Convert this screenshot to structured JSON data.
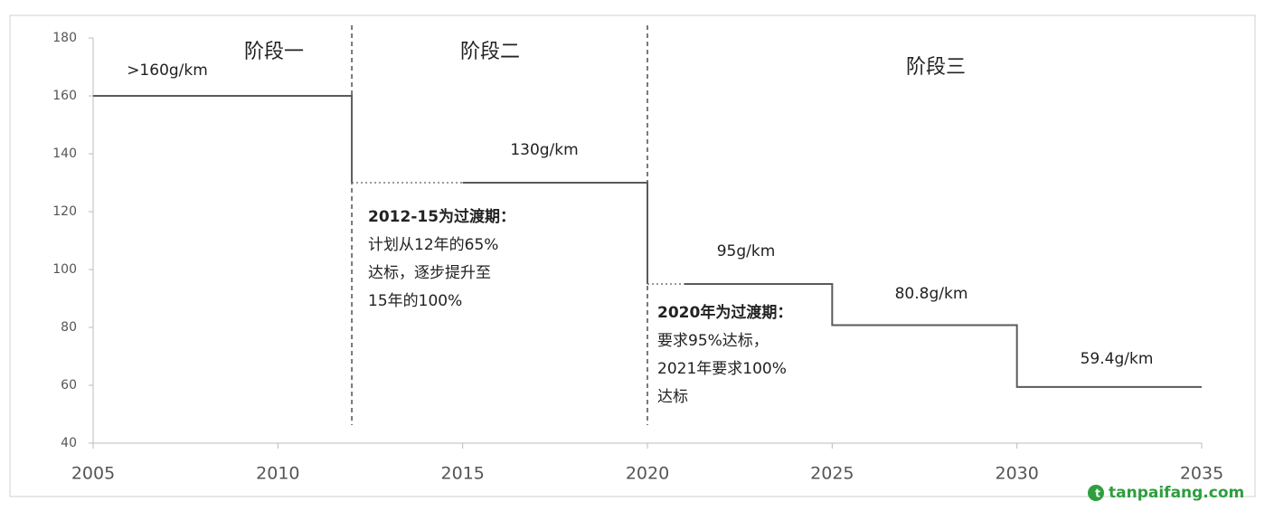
{
  "chart_data": {
    "type": "step-line",
    "xlim": [
      2005,
      2035
    ],
    "ylim": [
      40,
      180
    ],
    "xticks": [
      2005,
      2010,
      2015,
      2020,
      2025,
      2030,
      2035
    ],
    "yticks": [
      40,
      60,
      80,
      100,
      120,
      140,
      160,
      180
    ],
    "series": [
      {
        "color": "#5a5a5a",
        "dash": "solid",
        "x": [
          2005,
          2012,
          2012,
          null,
          2015,
          2020,
          2020,
          null,
          2021,
          2025,
          2025,
          2030,
          2030,
          2035
        ],
        "values": [
          160,
          160,
          130,
          null,
          130,
          130,
          95,
          null,
          95,
          95,
          80.8,
          80.8,
          59.4,
          59.4
        ]
      },
      {
        "color": "#777777",
        "dash": "dotted",
        "x": [
          2012,
          2015,
          null,
          2020,
          2021
        ],
        "values": [
          130,
          130,
          null,
          95,
          95
        ]
      }
    ],
    "vlines": [
      2012,
      2020
    ],
    "phase_labels": [
      "阶段一",
      "阶段二",
      "阶段三"
    ],
    "value_annotations": [
      ">160g/km",
      "130g/km",
      "95g/km",
      "80.8g/km",
      "59.4g/km"
    ],
    "notes": [
      {
        "title": "2012-15为过渡期：",
        "lines": [
          "计划从12年的65%",
          "达标，逐步提升至",
          "15年的100%"
        ]
      },
      {
        "title": "2020年为过渡期：",
        "lines": [
          "要求95%达标，",
          "2021年要求100%",
          "达标"
        ]
      }
    ],
    "watermark": "tanpaifang.com"
  }
}
